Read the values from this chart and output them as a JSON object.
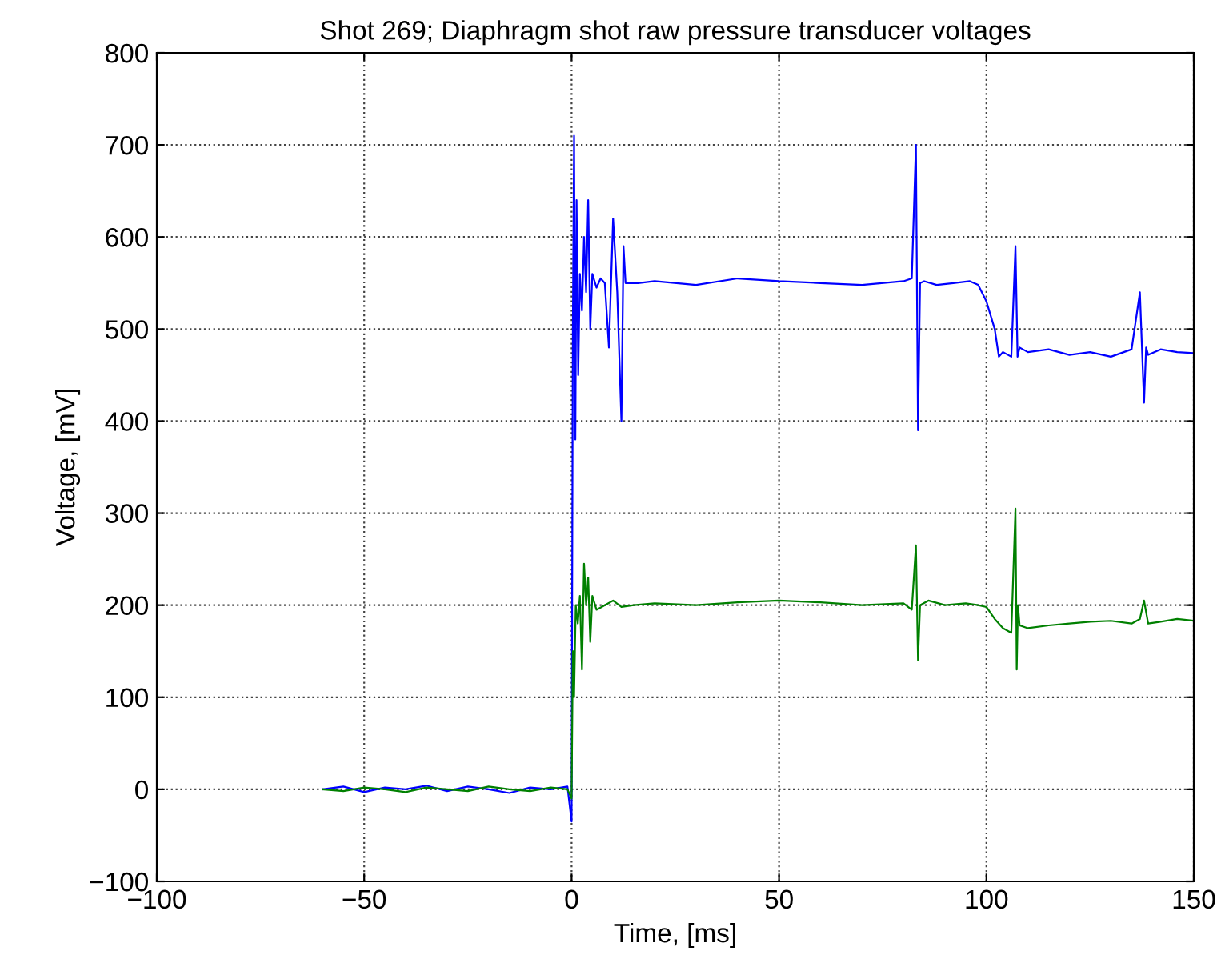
{
  "chart_data": {
    "type": "line",
    "title": "Shot 269; Diaphragm shot raw pressure transducer voltages",
    "xlabel": "Time, [ms]",
    "ylabel": "Voltage, [mV]",
    "xlim": [
      -100,
      150
    ],
    "ylim": [
      -100,
      800
    ],
    "xticks": [
      {
        "value": -100,
        "label": "−100"
      },
      {
        "value": -50,
        "label": "−50"
      },
      0,
      50,
      100,
      150
    ],
    "yticks": [
      {
        "value": -100,
        "label": "−100"
      },
      0,
      100,
      200,
      300,
      400,
      500,
      600,
      700,
      800
    ],
    "grid": true,
    "line_style": "solid",
    "marker": "none",
    "series": [
      {
        "color": "#0000ff",
        "x": [
          -60,
          -55,
          -50,
          -45,
          -40,
          -35,
          -30,
          -25,
          -20,
          -15,
          -10,
          -5,
          -1,
          0,
          0.3,
          0.6,
          0.9,
          1.2,
          1.6,
          2,
          2.5,
          3,
          3.5,
          4,
          4.5,
          5,
          6,
          7,
          8,
          9,
          10,
          11,
          12,
          12.5,
          13,
          14,
          16,
          20,
          30,
          40,
          50,
          60,
          70,
          80,
          82,
          83,
          83.5,
          84,
          85,
          88,
          92,
          96,
          98,
          100,
          102,
          103,
          104,
          106,
          107,
          107.5,
          108,
          110,
          115,
          120,
          125,
          130,
          135,
          137,
          138,
          138.5,
          139,
          142,
          146,
          150
        ],
        "values": [
          0,
          3,
          -3,
          2,
          0,
          4,
          -2,
          3,
          0,
          -4,
          2,
          0,
          3,
          -35,
          500,
          710,
          380,
          640,
          450,
          560,
          520,
          600,
          540,
          640,
          500,
          560,
          545,
          555,
          550,
          480,
          620,
          540,
          400,
          590,
          550,
          550,
          550,
          552,
          548,
          555,
          552,
          550,
          548,
          552,
          555,
          700,
          390,
          550,
          552,
          548,
          550,
          552,
          548,
          530,
          500,
          470,
          475,
          470,
          590,
          470,
          480,
          475,
          478,
          472,
          475,
          470,
          478,
          540,
          420,
          480,
          472,
          478,
          475,
          474
        ]
      },
      {
        "color": "#008000",
        "x": [
          -60,
          -55,
          -50,
          -45,
          -40,
          -35,
          -30,
          -25,
          -20,
          -15,
          -10,
          -5,
          -1,
          0,
          0.3,
          0.6,
          1,
          1.5,
          2,
          2.5,
          3,
          3.5,
          4,
          4.5,
          5,
          6,
          8,
          10,
          12,
          15,
          20,
          30,
          40,
          50,
          60,
          70,
          80,
          82,
          83,
          83.5,
          84,
          86,
          90,
          95,
          98,
          100,
          102,
          104,
          106,
          107,
          107.3,
          107.6,
          108,
          110,
          115,
          120,
          125,
          130,
          135,
          137,
          138,
          139,
          142,
          146,
          150
        ],
        "values": [
          0,
          -2,
          2,
          0,
          -3,
          2,
          0,
          -2,
          3,
          0,
          -2,
          2,
          0,
          -10,
          150,
          100,
          200,
          180,
          210,
          130,
          245,
          200,
          230,
          160,
          210,
          195,
          200,
          205,
          198,
          200,
          202,
          200,
          203,
          205,
          203,
          200,
          202,
          195,
          265,
          140,
          200,
          205,
          200,
          202,
          200,
          198,
          185,
          175,
          170,
          305,
          130,
          200,
          178,
          175,
          178,
          180,
          182,
          183,
          180,
          185,
          205,
          180,
          182,
          185,
          183
        ]
      }
    ]
  }
}
